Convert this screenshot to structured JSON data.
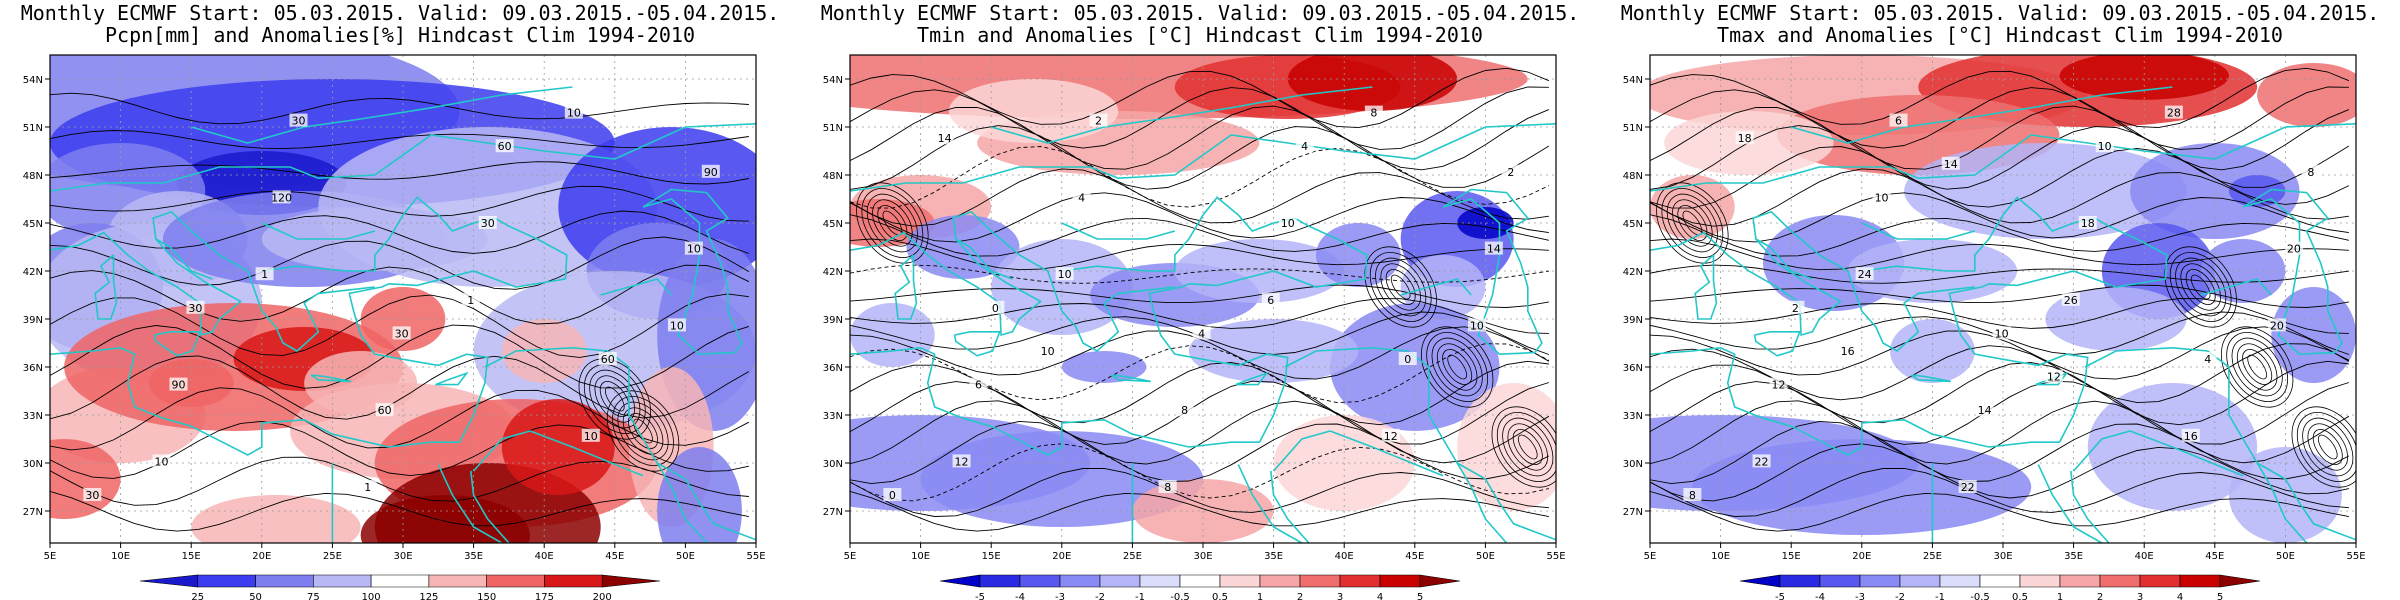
{
  "panels": [
    {
      "id": "pcpn",
      "title1": "Monthly ECMWF Start: 05.03.2015. Valid: 09.03.2015.-05.04.2015.",
      "title2": "Pcpn[mm] and Anomalies[%] Hindcast Clim 1994-2010",
      "colorbar": {
        "labels": [
          "25",
          "50",
          "75",
          "100",
          "125",
          "150",
          "175",
          "200"
        ],
        "colors": [
          "#1a1acc",
          "#3c3cf0",
          "#7e7ef0",
          "#b8b8f5",
          "#ffffff",
          "#f7b5b5",
          "#f06464",
          "#d81818",
          "#8c0000"
        ]
      },
      "contour_labels": [
        "30",
        "30",
        "30",
        "30",
        "60",
        "60",
        "90",
        "90",
        "120",
        "60",
        "30",
        "10",
        "10",
        "10",
        "1",
        "1",
        "1",
        "10",
        "10"
      ]
    },
    {
      "id": "tmin",
      "title1": "Monthly ECMWF Start: 05.03.2015. Valid: 09.03.2015.-05.04.2015.",
      "title2": "Tmin and Anomalies [°C] Hindcast Clim 1994-2010",
      "colorbar": {
        "labels": [
          "-5",
          "-4",
          "-3",
          "-2",
          "-1",
          "-0.5",
          "0.5",
          "1",
          "2",
          "3",
          "4",
          "5"
        ],
        "colors": [
          "#0000c8",
          "#2a2ae0",
          "#5858f0",
          "#8a8af5",
          "#b4b4f8",
          "#dcdcfb",
          "#ffffff",
          "#fbd6d6",
          "#f6a6a6",
          "#ee6e6e",
          "#e23030",
          "#c80000",
          "#8c0000"
        ]
      },
      "contour_labels": [
        "0",
        "0",
        "2",
        "4",
        "4",
        "0",
        "2",
        "6",
        "4",
        "8",
        "10",
        "12",
        "14",
        "12",
        "10",
        "8",
        "6",
        "8",
        "10",
        "14",
        "10"
      ]
    },
    {
      "id": "tmax",
      "title1": "Monthly ECMWF Start: 05.03.2015. Valid: 09.03.2015.-05.04.2015.",
      "title2": "Tmax and Anomalies [°C] Hindcast Clim 1994-2010",
      "colorbar": {
        "labels": [
          "-5",
          "-4",
          "-3",
          "-2",
          "-1",
          "-0.5",
          "0.5",
          "1",
          "2",
          "3",
          "4",
          "5"
        ],
        "colors": [
          "#0000c8",
          "#2a2ae0",
          "#5858f0",
          "#8a8af5",
          "#b4b4f8",
          "#dcdcfb",
          "#ffffff",
          "#fbd6d6",
          "#f6a6a6",
          "#ee6e6e",
          "#e23030",
          "#c80000",
          "#8c0000"
        ]
      },
      "contour_labels": [
        "8",
        "2",
        "6",
        "10",
        "10",
        "4",
        "8",
        "12",
        "10",
        "14",
        "18",
        "16",
        "20",
        "22",
        "24",
        "22",
        "26",
        "28",
        "20",
        "18",
        "16",
        "14",
        "12"
      ]
    }
  ],
  "axes": {
    "lat_labels": [
      "54N",
      "51N",
      "48N",
      "45N",
      "42N",
      "39N",
      "36N",
      "33N",
      "30N",
      "27N"
    ],
    "lon_labels": [
      "5E",
      "10E",
      "15E",
      "20E",
      "25E",
      "30E",
      "35E",
      "40E",
      "45E",
      "50E",
      "55E"
    ]
  },
  "colors": {
    "coast": "#22c8c8",
    "contour": "#000000"
  }
}
